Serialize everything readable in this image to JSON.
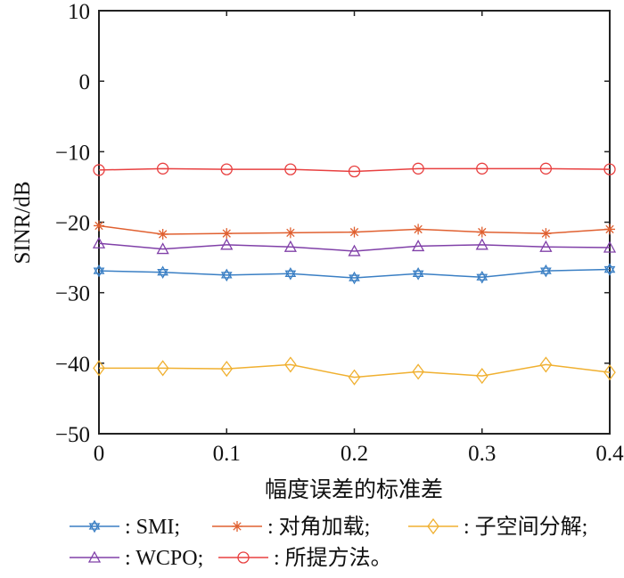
{
  "chart_data": {
    "type": "line",
    "title": "",
    "xlabel": "幅度误差的标准差",
    "ylabel": "SINR/dB",
    "xlim": [
      0,
      0.4
    ],
    "ylim": [
      -50,
      10
    ],
    "xticks": [
      "0",
      "0.1",
      "0.2",
      "0.3",
      "0.4"
    ],
    "yticks": [
      "10",
      "0",
      "−10",
      "−20",
      "−30",
      "−40",
      "−50"
    ],
    "grid": false,
    "legend_position": "bottom",
    "x": [
      0,
      0.05,
      0.1,
      0.15,
      0.2,
      0.25,
      0.3,
      0.35,
      0.4
    ],
    "series": [
      {
        "name": "SMI",
        "label": ": SMI;",
        "color": "#3a7fc4",
        "marker": "hexagram",
        "values": [
          -26.9,
          -27.1,
          -27.5,
          -27.3,
          -27.9,
          -27.3,
          -27.8,
          -26.9,
          -26.7
        ]
      },
      {
        "name": "对角加载",
        "label": ": 对角加载;",
        "color": "#e06030",
        "marker": "star",
        "values": [
          -20.5,
          -21.7,
          -21.6,
          -21.5,
          -21.4,
          -21.0,
          -21.4,
          -21.6,
          -21.0
        ]
      },
      {
        "name": "子空间分解",
        "label": ": 子空间分解;",
        "color": "#f0b030",
        "marker": "diamond",
        "values": [
          -40.7,
          -40.7,
          -40.8,
          -40.2,
          -42.0,
          -41.2,
          -41.8,
          -40.2,
          -41.3
        ]
      },
      {
        "name": "WCPO",
        "label": ": WCPO;",
        "color": "#8040a8",
        "marker": "triangle",
        "values": [
          -23.0,
          -23.8,
          -23.2,
          -23.5,
          -24.1,
          -23.4,
          -23.2,
          -23.5,
          -23.6
        ]
      },
      {
        "name": "所提方法",
        "label": ": 所提方法。",
        "color": "#e84040",
        "marker": "circle",
        "values": [
          -12.6,
          -12.4,
          -12.5,
          -12.5,
          -12.8,
          -12.4,
          -12.4,
          -12.4,
          -12.5
        ]
      }
    ]
  }
}
